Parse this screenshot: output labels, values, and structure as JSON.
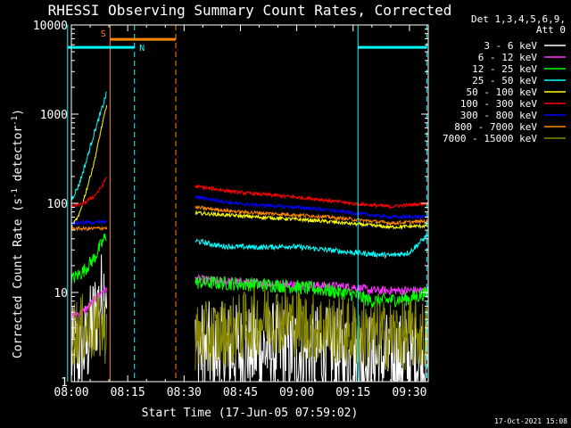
{
  "chart_data": {
    "type": "line",
    "title": "RHESSI Observing Summary Count Rates, Corrected",
    "xlabel": "Start Time (17-Jun-05 07:59:02)",
    "ylabel": "Corrected Count Rate (s",
    "ylabel_sup1": "-1",
    "ylabel_mid": " detector",
    "ylabel_sup2": "-1",
    "ylabel_end": ")",
    "yscale": "log",
    "ylim": [
      1,
      10000
    ],
    "xlim_minutes": [
      0,
      95
    ],
    "x_ticks": [
      {
        "m": 0,
        "label": "08:00"
      },
      {
        "m": 15,
        "label": "08:15"
      },
      {
        "m": 30,
        "label": "08:30"
      },
      {
        "m": 45,
        "label": "08:45"
      },
      {
        "m": 60,
        "label": "09:00"
      },
      {
        "m": 75,
        "label": "09:15"
      },
      {
        "m": 90,
        "label": "09:30"
      }
    ],
    "y_ticks": [
      {
        "v": 1,
        "label": "1"
      },
      {
        "v": 10,
        "label": "10"
      },
      {
        "v": 100,
        "label": "100"
      },
      {
        "v": 1000,
        "label": "1000"
      },
      {
        "v": 10000,
        "label": "10000"
      }
    ],
    "legend_header": [
      "Det 1,3,4,5,6,9,",
      "Att 0"
    ],
    "legend_position": "right",
    "series": [
      {
        "name": "3 - 6 keV",
        "color": "#ffffff",
        "pre": [
          [
            0,
            1.9
          ],
          [
            4,
            2.5
          ],
          [
            6,
            5
          ],
          [
            8.5,
            10
          ],
          [
            9.5,
            14
          ]
        ],
        "post": [
          [
            33,
            2.3
          ],
          [
            45,
            2.2
          ],
          [
            55,
            2.3
          ],
          [
            65,
            2.1
          ],
          [
            75,
            1.8
          ],
          [
            90,
            1.7
          ],
          [
            95,
            1.8
          ]
        ],
        "noise": 0.55
      },
      {
        "name": "6 - 12 keV",
        "color": "#ff33ff",
        "pre": [
          [
            0,
            5.5
          ],
          [
            3,
            6
          ],
          [
            6,
            8
          ],
          [
            8.5,
            10.5
          ],
          [
            9.5,
            11
          ]
        ],
        "post": [
          [
            33,
            14
          ],
          [
            45,
            13
          ],
          [
            55,
            12.5
          ],
          [
            65,
            12
          ],
          [
            75,
            11.5
          ],
          [
            80,
            10.5
          ],
          [
            95,
            10.5
          ]
        ],
        "noise": 0.05
      },
      {
        "name": "12 - 25 keV",
        "color": "#00ff00",
        "pre": [
          [
            0,
            14
          ],
          [
            3,
            17
          ],
          [
            6,
            24
          ],
          [
            8.5,
            38
          ],
          [
            9.5,
            45
          ]
        ],
        "post": [
          [
            33,
            13
          ],
          [
            45,
            12.5
          ],
          [
            55,
            12
          ],
          [
            65,
            11
          ],
          [
            75,
            9.5
          ],
          [
            80,
            8
          ],
          [
            90,
            8.5
          ],
          [
            95,
            10
          ]
        ],
        "noise": 0.08
      },
      {
        "name": "25 - 50 keV",
        "color": "#00ffff",
        "pre": [
          [
            0,
            110
          ],
          [
            2,
            160
          ],
          [
            4,
            300
          ],
          [
            6,
            600
          ],
          [
            8,
            1100
          ],
          [
            9.5,
            1800
          ]
        ],
        "post": [
          [
            33,
            38
          ],
          [
            40,
            33
          ],
          [
            50,
            32
          ],
          [
            58,
            33
          ],
          [
            65,
            31
          ],
          [
            75,
            28
          ],
          [
            85,
            26
          ],
          [
            90,
            28
          ],
          [
            95,
            45
          ]
        ],
        "noise": 0.03
      },
      {
        "name": "50 - 100 keV",
        "color": "#ffff00",
        "pre": [
          [
            0,
            55
          ],
          [
            2,
            72
          ],
          [
            4,
            140
          ],
          [
            6,
            280
          ],
          [
            8,
            700
          ],
          [
            9.5,
            1300
          ]
        ],
        "post": [
          [
            33,
            78
          ],
          [
            45,
            72
          ],
          [
            55,
            68
          ],
          [
            65,
            64
          ],
          [
            75,
            59
          ],
          [
            85,
            54
          ],
          [
            95,
            56
          ]
        ],
        "noise": 0.02
      },
      {
        "name": "100 - 300 keV",
        "color": "#ff0000",
        "pre": [
          [
            0,
            92
          ],
          [
            3,
            98
          ],
          [
            6,
            120
          ],
          [
            8,
            150
          ],
          [
            9.5,
            205
          ]
        ],
        "post": [
          [
            33,
            155
          ],
          [
            45,
            132
          ],
          [
            55,
            122
          ],
          [
            65,
            112
          ],
          [
            75,
            99
          ],
          [
            85,
            92
          ],
          [
            95,
            100
          ]
        ],
        "noise": 0.02
      },
      {
        "name": "300 - 800 keV",
        "color": "#0000ff",
        "pre": [
          [
            0,
            60
          ],
          [
            5,
            61
          ],
          [
            9.5,
            62
          ]
        ],
        "post": [
          [
            33,
            118
          ],
          [
            45,
            98
          ],
          [
            55,
            93
          ],
          [
            65,
            87
          ],
          [
            75,
            78
          ],
          [
            85,
            70
          ],
          [
            95,
            71
          ]
        ],
        "noise": 0.02
      },
      {
        "name": "800 - 7000 keV",
        "color": "#ff8800",
        "pre": [
          [
            0,
            52
          ],
          [
            5,
            52
          ],
          [
            9.5,
            53
          ]
        ],
        "post": [
          [
            33,
            90
          ],
          [
            45,
            80
          ],
          [
            55,
            76
          ],
          [
            65,
            72
          ],
          [
            75,
            66
          ],
          [
            85,
            60
          ],
          [
            95,
            63
          ]
        ],
        "noise": 0.02
      },
      {
        "name": "7000 - 15000 keV",
        "color": "#888800",
        "pre": [
          [
            0,
            3.6
          ],
          [
            5,
            4
          ],
          [
            9.5,
            3.9
          ]
        ],
        "post": [
          [
            33,
            3
          ],
          [
            42,
            3.6
          ],
          [
            48,
            4.5
          ],
          [
            52,
            5.3
          ],
          [
            58,
            5
          ],
          [
            62,
            4.2
          ],
          [
            70,
            3.8
          ],
          [
            80,
            3.3
          ],
          [
            95,
            3.4
          ]
        ],
        "noise": 0.4
      }
    ],
    "vlines": [
      {
        "m": -1,
        "color": "#00ffff",
        "style": "solid"
      },
      {
        "m": 10.3,
        "color": "#ff8800",
        "style": "solid"
      },
      {
        "m": 16.8,
        "color": "#00ffff",
        "style": "dashed"
      },
      {
        "m": 27.8,
        "color": "#ff8800",
        "style": "dashed"
      },
      {
        "m": 76.3,
        "color": "#00ffff",
        "style": "solid"
      },
      {
        "m": 94.6,
        "color": "#00ffff",
        "style": "dashed"
      }
    ],
    "bars": [
      {
        "from": -1,
        "to": 16.8,
        "color": "#00ffff",
        "value": 5600
      },
      {
        "from": 10.3,
        "to": 27.8,
        "color": "#ff8800",
        "value": 6900
      },
      {
        "from": 76.3,
        "to": 94.6,
        "color": "#00ffff",
        "value": 5600
      }
    ],
    "bar_labels": [
      {
        "text": "S",
        "m": 8.5,
        "value": 8100,
        "color": "#ff8800"
      },
      {
        "text": "N",
        "m": 18.8,
        "value": 5600,
        "color": "#00ffff"
      }
    ]
  },
  "footer": {
    "timestamp": "17-Oct-2021 15:08"
  }
}
